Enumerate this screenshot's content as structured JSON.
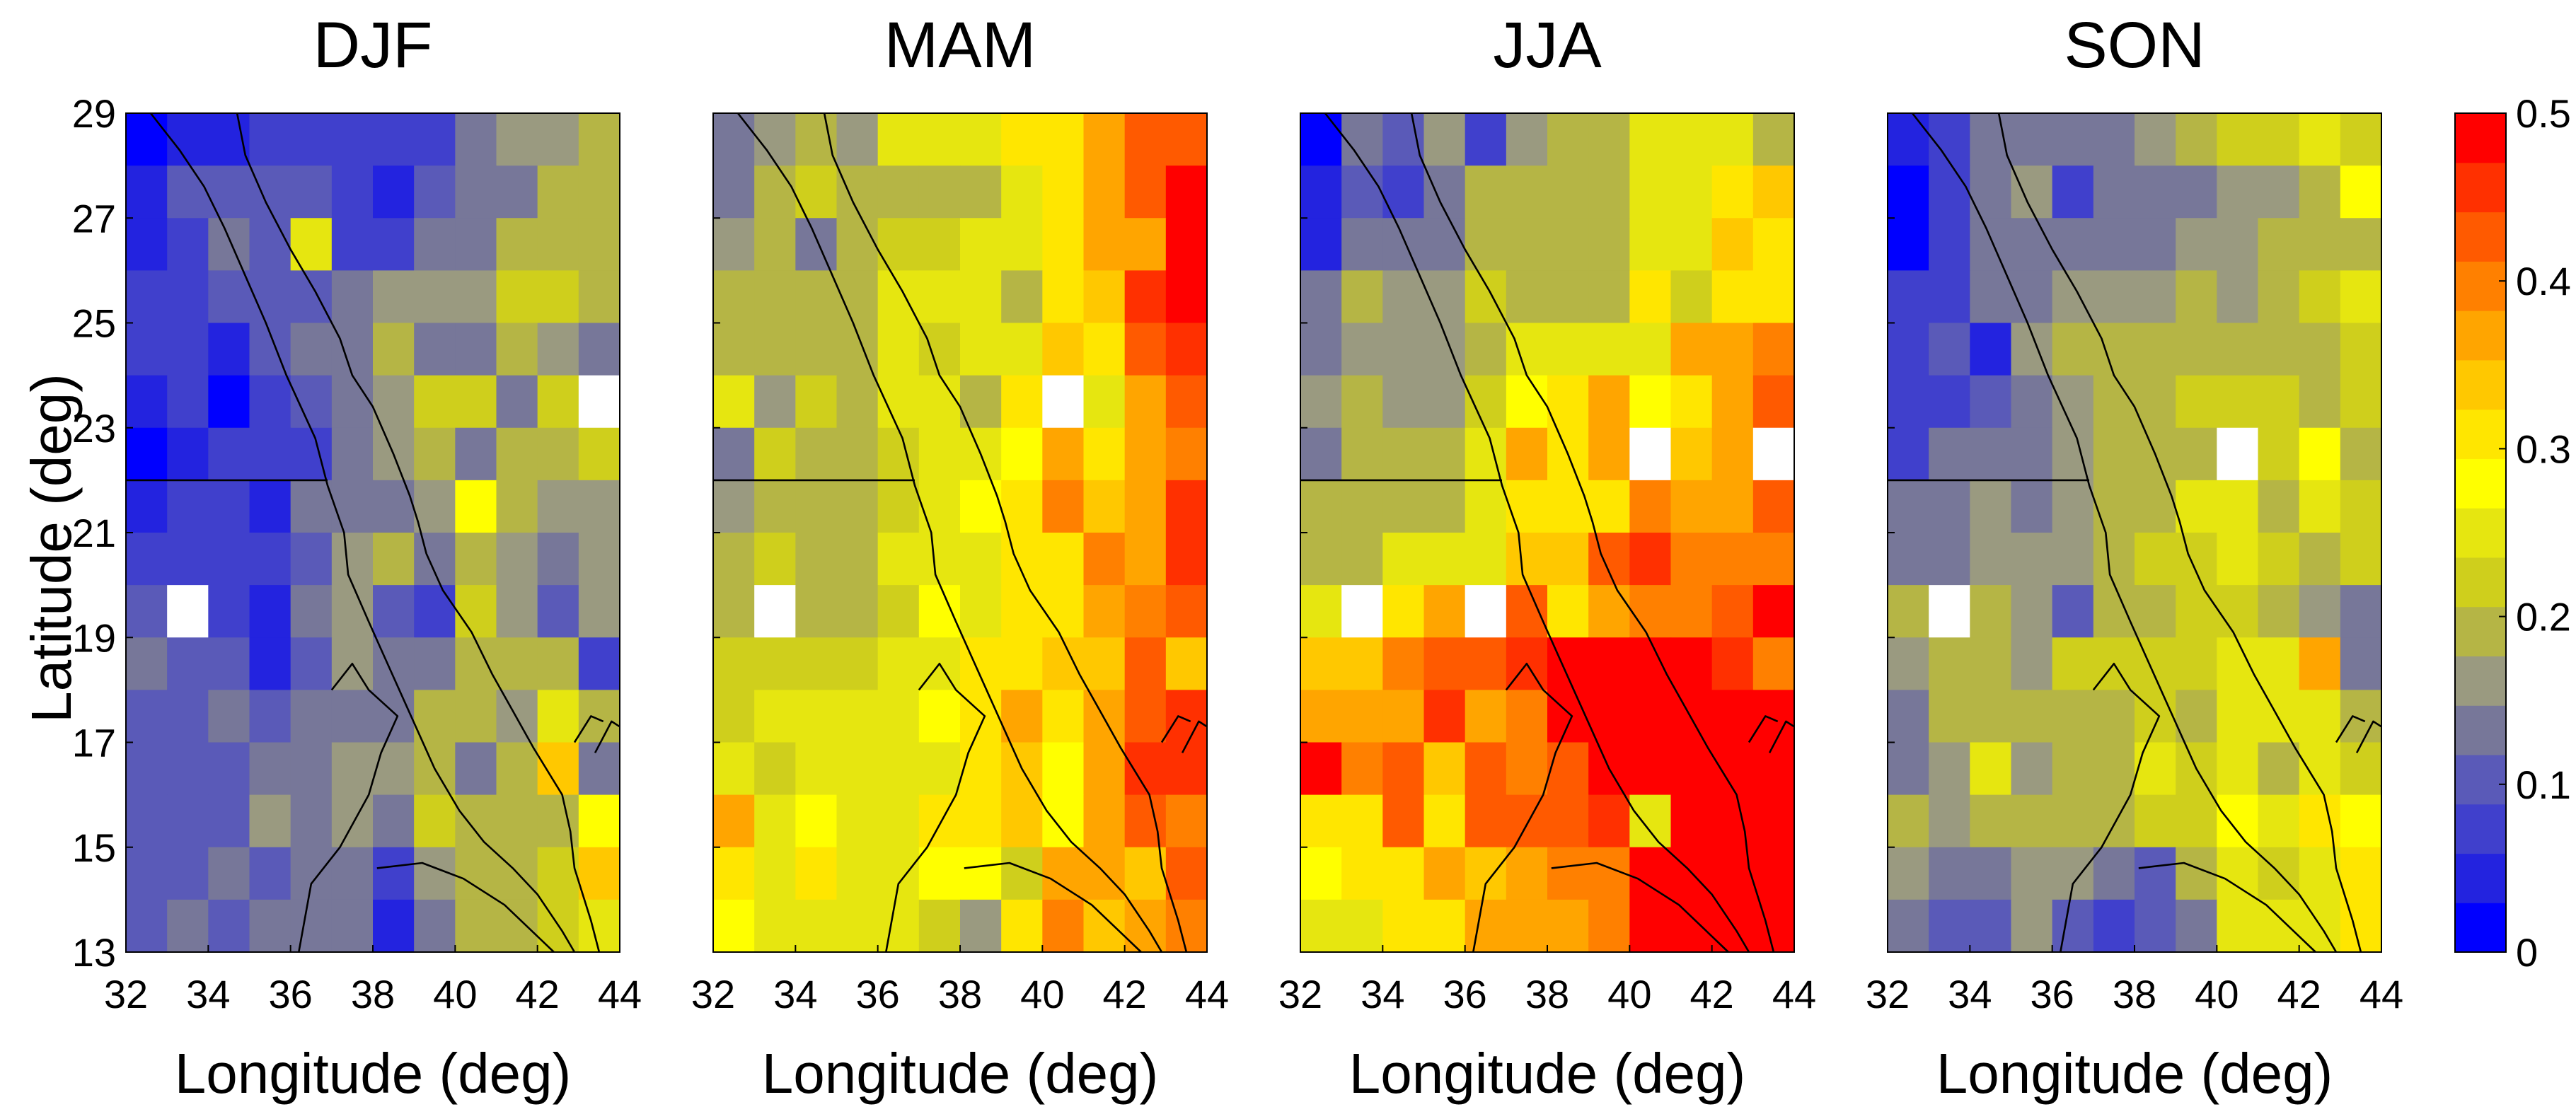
{
  "chart_data": {
    "type": "heatmap",
    "ylabel": "Latitude (deg)",
    "xlabel": "Longitude (deg)",
    "xlim": [
      32,
      44
    ],
    "ylim": [
      13,
      29
    ],
    "x_ticks": [
      "32",
      "34",
      "36",
      "38",
      "40",
      "42",
      "44"
    ],
    "y_ticks": [
      "13",
      "15",
      "17",
      "19",
      "21",
      "23",
      "25",
      "27",
      "29"
    ],
    "grid_lon": [
      32.5,
      33.5,
      34.5,
      35.5,
      36.5,
      37.5,
      38.5,
      39.5,
      40.5,
      41.5,
      42.5,
      43.5
    ],
    "grid_lat": [
      28.5,
      27.5,
      26.5,
      25.5,
      24.5,
      23.5,
      22.5,
      21.5,
      20.5,
      19.5,
      18.5,
      17.5,
      16.5,
      15.5,
      14.5,
      13.5
    ],
    "value_units_note": "cell values on colorbar scale 0 to 0.5; null = no data (white)",
    "colorbar": {
      "min": 0,
      "max": 0.5,
      "ticks": [
        "0",
        "0.1",
        "0.2",
        "0.3",
        "0.4",
        "0.5"
      ],
      "colors": [
        "#0000ff",
        "#2323df",
        "#4040cc",
        "#5a5ab8",
        "#777799",
        "#9a9a80",
        "#b5b545",
        "#cfcf1c",
        "#e6e610",
        "#ffff00",
        "#ffe600",
        "#ffc800",
        "#ffa500",
        "#ff8000",
        "#ff5a00",
        "#ff3000",
        "#ff0000"
      ]
    },
    "panels": [
      {
        "title": "DJF",
        "values": [
          [
            0.0,
            0.05,
            0.05,
            0.08,
            0.08,
            0.08,
            0.08,
            0.08,
            0.12,
            0.17,
            0.15,
            0.19
          ],
          [
            0.05,
            0.1,
            0.1,
            0.1,
            0.1,
            0.08,
            0.03,
            0.1,
            0.13,
            0.13,
            0.18,
            0.2
          ],
          [
            0.05,
            0.08,
            0.13,
            0.1,
            0.24,
            0.08,
            0.08,
            0.12,
            0.14,
            0.18,
            0.18,
            0.18
          ],
          [
            0.06,
            0.08,
            0.1,
            0.1,
            0.09,
            0.14,
            0.15,
            0.15,
            0.17,
            0.21,
            0.21,
            0.19
          ],
          [
            0.07,
            0.08,
            0.05,
            0.1,
            0.12,
            0.14,
            0.18,
            0.13,
            0.13,
            0.18,
            0.15,
            0.14
          ],
          [
            0.05,
            0.07,
            0.01,
            0.08,
            0.11,
            0.14,
            0.15,
            0.22,
            0.22,
            0.14,
            0.21,
            null
          ],
          [
            0.02,
            0.04,
            0.07,
            0.08,
            0.08,
            0.12,
            0.15,
            0.18,
            0.14,
            0.18,
            0.19,
            0.21
          ],
          [
            0.03,
            0.06,
            0.08,
            0.05,
            0.12,
            0.13,
            0.14,
            0.15,
            0.27,
            0.19,
            0.15,
            0.17
          ],
          [
            0.06,
            0.07,
            0.07,
            0.06,
            0.11,
            0.15,
            0.19,
            0.12,
            0.2,
            0.17,
            0.14,
            0.17
          ],
          [
            0.1,
            null,
            0.07,
            0.05,
            0.12,
            0.15,
            0.11,
            0.08,
            0.22,
            0.17,
            0.09,
            0.16
          ],
          [
            0.13,
            0.1,
            0.1,
            0.05,
            0.11,
            0.15,
            0.12,
            0.14,
            0.2,
            0.19,
            0.18,
            0.07
          ],
          [
            0.1,
            0.11,
            0.12,
            0.1,
            0.12,
            0.14,
            0.12,
            0.18,
            0.2,
            0.17,
            0.25,
            0.2
          ],
          [
            0.11,
            0.1,
            0.1,
            0.12,
            0.14,
            0.15,
            0.15,
            0.19,
            0.14,
            0.19,
            0.34,
            0.14
          ],
          [
            0.1,
            0.11,
            0.1,
            0.17,
            0.13,
            0.15,
            0.13,
            0.22,
            0.2,
            0.18,
            0.2,
            0.27
          ],
          [
            0.11,
            0.1,
            0.14,
            0.1,
            0.14,
            0.12,
            0.06,
            0.16,
            0.19,
            0.19,
            0.21,
            0.35
          ],
          [
            0.1,
            0.12,
            0.11,
            0.13,
            0.12,
            0.13,
            0.03,
            0.14,
            0.19,
            0.18,
            0.21,
            0.26
          ]
        ]
      },
      {
        "title": "MAM",
        "values": [
          [
            0.12,
            0.17,
            0.2,
            0.16,
            0.25,
            0.26,
            0.24,
            0.3,
            0.32,
            0.36,
            0.43,
            0.42
          ],
          [
            0.12,
            0.18,
            0.22,
            0.2,
            0.2,
            0.2,
            0.18,
            0.24,
            0.3,
            0.37,
            0.43,
            0.48
          ],
          [
            0.16,
            0.2,
            0.14,
            0.2,
            0.22,
            0.22,
            0.24,
            0.26,
            0.3,
            0.36,
            0.36,
            0.48
          ],
          [
            0.18,
            0.2,
            0.2,
            0.2,
            0.24,
            0.26,
            0.26,
            0.18,
            0.31,
            0.33,
            0.46,
            0.5
          ],
          [
            0.18,
            0.19,
            0.18,
            0.2,
            0.25,
            0.22,
            0.24,
            0.26,
            0.35,
            0.3,
            0.44,
            0.47
          ],
          [
            0.26,
            0.16,
            0.22,
            0.18,
            0.24,
            0.24,
            0.2,
            0.32,
            null,
            0.26,
            0.37,
            0.42
          ],
          [
            0.14,
            0.22,
            0.2,
            0.2,
            0.22,
            0.26,
            0.26,
            0.28,
            0.36,
            0.3,
            0.37,
            0.4
          ],
          [
            0.16,
            0.2,
            0.19,
            0.18,
            0.21,
            0.26,
            0.28,
            0.32,
            0.4,
            0.33,
            0.38,
            0.46
          ],
          [
            0.19,
            0.22,
            0.2,
            0.2,
            0.24,
            0.24,
            0.26,
            0.3,
            0.3,
            0.4,
            0.36,
            0.47
          ],
          [
            0.2,
            null,
            0.2,
            0.2,
            0.22,
            0.28,
            0.25,
            0.3,
            0.3,
            0.36,
            0.4,
            0.42
          ],
          [
            0.21,
            0.21,
            0.21,
            0.22,
            0.24,
            0.26,
            0.3,
            0.32,
            0.35,
            0.34,
            0.44,
            0.33
          ],
          [
            0.21,
            0.24,
            0.26,
            0.25,
            0.25,
            0.28,
            0.3,
            0.36,
            0.3,
            0.38,
            0.42,
            0.46
          ],
          [
            0.25,
            0.23,
            0.25,
            0.25,
            0.26,
            0.25,
            0.32,
            0.34,
            0.29,
            0.36,
            0.46,
            0.45
          ],
          [
            0.36,
            0.24,
            0.29,
            0.25,
            0.24,
            0.32,
            0.31,
            0.34,
            0.29,
            0.38,
            0.44,
            0.4
          ],
          [
            0.32,
            0.26,
            0.3,
            0.25,
            0.24,
            0.28,
            0.28,
            0.22,
            0.36,
            0.36,
            0.33,
            0.42
          ],
          [
            0.28,
            0.25,
            0.26,
            0.24,
            0.24,
            0.22,
            0.16,
            0.3,
            0.4,
            0.34,
            0.36,
            0.4
          ]
        ]
      },
      {
        "title": "JJA",
        "values": [
          [
            0.0,
            0.12,
            0.1,
            0.16,
            0.08,
            0.16,
            0.18,
            0.2,
            0.26,
            0.26,
            0.26,
            0.2
          ],
          [
            0.05,
            0.11,
            0.08,
            0.14,
            0.18,
            0.2,
            0.2,
            0.2,
            0.24,
            0.26,
            0.32,
            0.33
          ],
          [
            0.05,
            0.12,
            0.14,
            0.14,
            0.2,
            0.2,
            0.2,
            0.18,
            0.26,
            0.26,
            0.34,
            0.32
          ],
          [
            0.13,
            0.18,
            0.16,
            0.17,
            0.22,
            0.2,
            0.2,
            0.2,
            0.3,
            0.21,
            0.3,
            0.3
          ],
          [
            0.14,
            0.16,
            0.16,
            0.16,
            0.2,
            0.25,
            0.26,
            0.26,
            0.26,
            0.36,
            0.36,
            0.4
          ],
          [
            0.17,
            0.19,
            0.17,
            0.17,
            0.21,
            0.28,
            0.3,
            0.36,
            0.28,
            0.3,
            0.36,
            0.44
          ],
          [
            0.14,
            0.18,
            0.2,
            0.18,
            0.24,
            0.36,
            0.3,
            0.38,
            null,
            0.33,
            0.37,
            null
          ],
          [
            0.18,
            0.2,
            0.2,
            0.18,
            0.24,
            0.3,
            0.3,
            0.3,
            0.4,
            0.36,
            0.38,
            0.43
          ],
          [
            0.2,
            0.2,
            0.26,
            0.26,
            0.26,
            0.34,
            0.34,
            0.44,
            0.46,
            0.4,
            0.4,
            0.4
          ],
          [
            0.24,
            null,
            0.3,
            0.36,
            null,
            0.44,
            0.32,
            0.36,
            0.4,
            0.4,
            0.42,
            0.48
          ],
          [
            0.34,
            0.34,
            0.4,
            0.44,
            0.44,
            0.46,
            0.5,
            0.5,
            0.5,
            0.48,
            0.46,
            0.4
          ],
          [
            0.36,
            0.36,
            0.38,
            0.46,
            0.36,
            0.4,
            0.5,
            0.5,
            0.5,
            0.5,
            0.5,
            0.5
          ],
          [
            0.48,
            0.4,
            0.42,
            0.34,
            0.44,
            0.4,
            0.44,
            0.5,
            0.5,
            0.48,
            0.5,
            0.5
          ],
          [
            0.32,
            0.3,
            0.42,
            0.3,
            0.44,
            0.44,
            0.44,
            0.46,
            0.26,
            0.5,
            0.5,
            0.5
          ],
          [
            0.28,
            0.3,
            0.3,
            0.36,
            0.34,
            0.38,
            0.4,
            0.4,
            0.5,
            0.5,
            0.5,
            0.5
          ],
          [
            0.26,
            0.26,
            0.3,
            0.3,
            0.36,
            0.36,
            0.38,
            0.4,
            0.5,
            0.5,
            0.5,
            0.5
          ]
        ]
      },
      {
        "title": "SON",
        "values": [
          [
            0.05,
            0.07,
            0.14,
            0.12,
            0.12,
            0.14,
            0.15,
            0.18,
            0.21,
            0.21,
            0.26,
            0.21
          ],
          [
            0.0,
            0.08,
            0.14,
            0.16,
            0.07,
            0.13,
            0.14,
            0.14,
            0.15,
            0.17,
            0.2,
            0.28
          ],
          [
            0.02,
            0.08,
            0.12,
            0.13,
            0.12,
            0.12,
            0.14,
            0.16,
            0.17,
            0.2,
            0.19,
            0.19
          ],
          [
            0.06,
            0.06,
            0.13,
            0.14,
            0.16,
            0.16,
            0.17,
            0.19,
            0.17,
            0.2,
            0.21,
            0.26
          ],
          [
            0.08,
            0.1,
            0.05,
            0.16,
            0.18,
            0.19,
            0.2,
            0.2,
            0.19,
            0.2,
            0.18,
            0.22
          ],
          [
            0.07,
            0.08,
            0.1,
            0.13,
            0.15,
            0.18,
            0.2,
            0.22,
            0.22,
            0.22,
            0.19,
            0.23
          ],
          [
            0.07,
            0.12,
            0.14,
            0.14,
            0.17,
            0.19,
            0.2,
            0.2,
            null,
            0.22,
            0.27,
            0.2
          ],
          [
            0.12,
            0.14,
            0.16,
            0.14,
            0.17,
            0.18,
            0.2,
            0.24,
            0.26,
            0.19,
            0.26,
            0.21
          ],
          [
            0.13,
            0.14,
            0.15,
            0.16,
            0.17,
            0.2,
            0.22,
            0.23,
            0.24,
            0.21,
            0.2,
            0.22
          ],
          [
            0.18,
            null,
            0.19,
            0.17,
            0.11,
            0.2,
            0.2,
            0.22,
            0.23,
            0.18,
            0.16,
            0.14
          ],
          [
            0.15,
            0.18,
            0.19,
            0.17,
            0.22,
            0.21,
            0.22,
            0.22,
            0.26,
            0.24,
            0.36,
            0.13
          ],
          [
            0.12,
            0.2,
            0.2,
            0.18,
            0.2,
            0.2,
            0.22,
            0.2,
            0.26,
            0.24,
            0.24,
            0.2
          ],
          [
            0.12,
            0.16,
            0.24,
            0.17,
            0.2,
            0.2,
            0.24,
            0.21,
            0.26,
            0.2,
            0.24,
            0.21
          ],
          [
            0.18,
            0.16,
            0.2,
            0.19,
            0.18,
            0.2,
            0.22,
            0.22,
            0.27,
            0.26,
            0.3,
            0.28
          ],
          [
            0.15,
            0.12,
            0.12,
            0.15,
            0.17,
            0.14,
            0.11,
            0.18,
            0.26,
            0.22,
            0.26,
            0.32
          ],
          [
            0.14,
            0.11,
            0.11,
            0.15,
            0.11,
            0.08,
            0.1,
            0.13,
            0.24,
            0.24,
            0.26,
            0.3
          ]
        ]
      }
    ]
  }
}
